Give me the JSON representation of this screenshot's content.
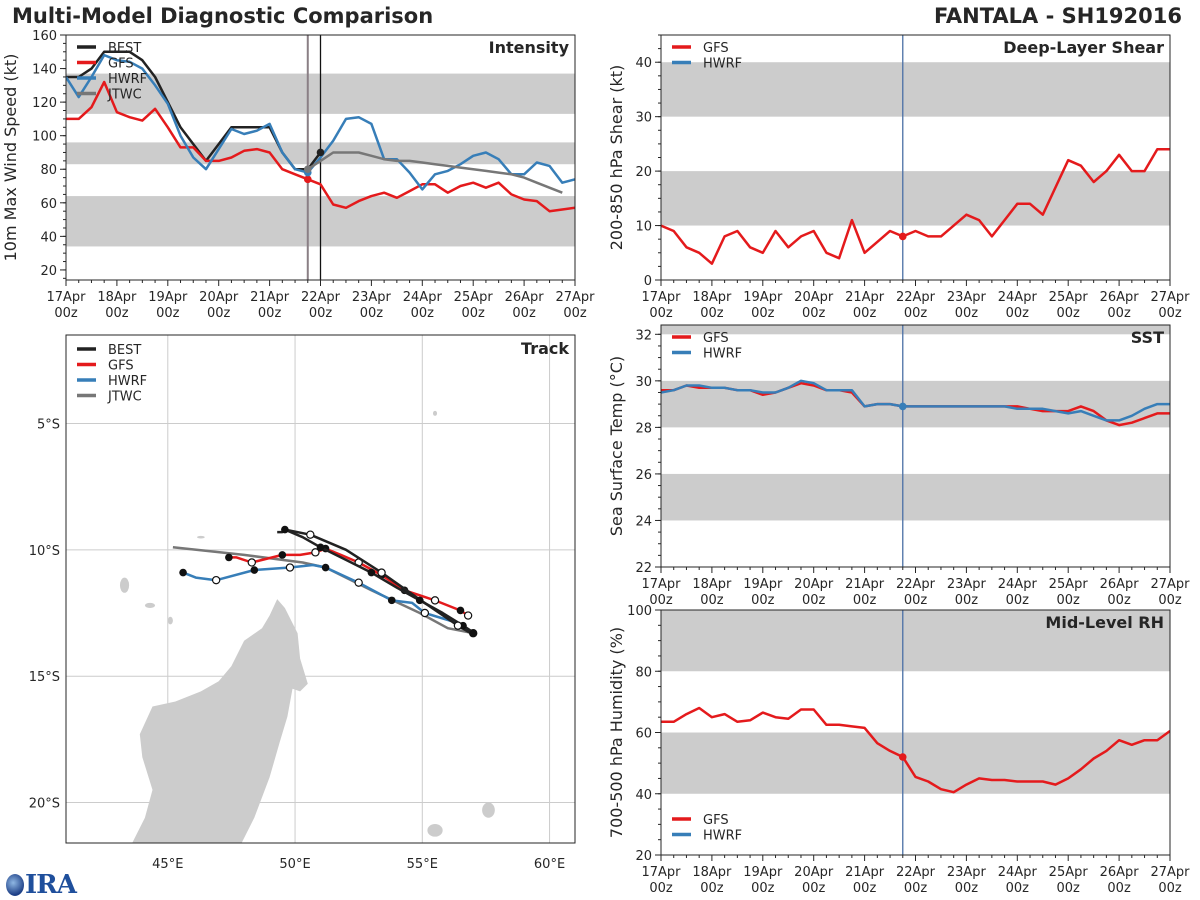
{
  "header": {
    "main_title": "Multi-Model Diagnostic Comparison",
    "storm_title": "FANTALA - SH192016",
    "logo_text": "IRA"
  },
  "colors": {
    "BEST": "#222222",
    "GFS": "#e41a1c",
    "HWRF": "#377eb8",
    "JTWC": "#777777",
    "band": "#cccccc",
    "land": "#cccccc",
    "grid": "#cccccc",
    "init_line_blue": "#4a6fa5",
    "init_line_grey": "#8a7f85"
  },
  "time_axis": {
    "start_hour": 0,
    "end_hour": 240,
    "step_hours": 6,
    "init_hour": 114,
    "tick_labels": [
      [
        "17Apr",
        "00z"
      ],
      [
        "18Apr",
        "00z"
      ],
      [
        "19Apr",
        "00z"
      ],
      [
        "20Apr",
        "00z"
      ],
      [
        "21Apr",
        "00z"
      ],
      [
        "22Apr",
        "00z"
      ],
      [
        "23Apr",
        "00z"
      ],
      [
        "24Apr",
        "00z"
      ],
      [
        "25Apr",
        "00z"
      ],
      [
        "26Apr",
        "00z"
      ],
      [
        "27Apr",
        "00z"
      ]
    ]
  },
  "chart_data": [
    {
      "id": "intensity",
      "type": "line",
      "title": "Intensity",
      "ylabel": "10m Max Wind Speed (kt)",
      "ylim": [
        14,
        160
      ],
      "yticks": [
        20,
        40,
        60,
        80,
        100,
        120,
        140,
        160
      ],
      "bands": [
        [
          34,
          64
        ],
        [
          83,
          96
        ],
        [
          113,
          137
        ]
      ],
      "vlines": [
        {
          "hour": 114,
          "color": "grey"
        },
        {
          "hour": 120,
          "color": "black"
        }
      ],
      "legend": [
        "BEST",
        "GFS",
        "HWRF",
        "JTWC"
      ],
      "legend_position": "top-left",
      "series": [
        {
          "name": "BEST",
          "start_hour": 0,
          "values": [
            135,
            135,
            140,
            150,
            150,
            150,
            145,
            135,
            120,
            105,
            95,
            85,
            95,
            105,
            105,
            105,
            105,
            90,
            80,
            80,
            90
          ]
        },
        {
          "name": "GFS",
          "start_hour": 0,
          "values": [
            110,
            110,
            117,
            132,
            114,
            111,
            109,
            116,
            105,
            93,
            93,
            85,
            85,
            87,
            91,
            92,
            90,
            80,
            77,
            74,
            71,
            59,
            57,
            61,
            64,
            66,
            63,
            67,
            71,
            71,
            66,
            70,
            72,
            69,
            72,
            65,
            62,
            61,
            55,
            56,
            57
          ]
        },
        {
          "name": "HWRF",
          "start_hour": 0,
          "values": [
            135,
            123,
            135,
            148,
            145,
            144,
            140,
            130,
            119,
            100,
            87,
            80,
            92,
            104,
            101,
            103,
            107,
            90,
            80,
            78,
            87,
            97,
            110,
            111,
            107,
            86,
            86,
            78,
            68,
            77,
            79,
            83,
            88,
            90,
            86,
            77,
            77,
            84,
            82,
            72,
            74
          ]
        },
        {
          "name": "JTWC",
          "start_hour": 114,
          "values": [
            80,
            85,
            90,
            90,
            90,
            88,
            86,
            85,
            85,
            84,
            83,
            82,
            81,
            80,
            79,
            78,
            77,
            75,
            72,
            69,
            66
          ]
        }
      ],
      "markers": [
        {
          "series": "GFS",
          "hour": 114,
          "value": 74
        },
        {
          "series": "HWRF",
          "hour": 114,
          "value": 78
        },
        {
          "series": "JTWC",
          "hour": 114,
          "value": 80
        },
        {
          "series": "BEST",
          "hour": 120,
          "value": 90
        }
      ]
    },
    {
      "id": "shear",
      "type": "line",
      "title": "Deep-Layer Shear",
      "ylabel": "200-850 hPa Shear (kt)",
      "ylim": [
        0,
        45
      ],
      "yticks": [
        0,
        10,
        20,
        30,
        40
      ],
      "bands": [
        [
          10,
          20
        ],
        [
          30,
          40
        ]
      ],
      "vlines": [
        {
          "hour": 114,
          "color": "blue"
        }
      ],
      "legend": [
        "GFS",
        "HWRF"
      ],
      "legend_position": "top-left",
      "series": [
        {
          "name": "GFS",
          "start_hour": 0,
          "values": [
            10,
            9,
            6,
            5,
            3,
            8,
            9,
            6,
            5,
            9,
            6,
            8,
            9,
            5,
            4,
            11,
            5,
            7,
            9,
            8,
            9,
            8,
            8,
            10,
            12,
            11,
            8,
            11,
            14,
            14,
            12,
            17,
            22,
            21,
            18,
            20,
            23,
            20,
            20,
            24,
            24
          ]
        },
        {
          "name": "HWRF",
          "start_hour": 0,
          "values": []
        }
      ],
      "markers": [
        {
          "series": "GFS",
          "hour": 114,
          "value": 8
        }
      ]
    },
    {
      "id": "sst",
      "type": "line",
      "title": "SST",
      "ylabel": "Sea Surface Temp (°C)",
      "ylim": [
        22,
        32.4
      ],
      "yticks": [
        22,
        24,
        26,
        28,
        30,
        32
      ],
      "bands": [
        [
          24,
          26
        ],
        [
          28,
          30
        ],
        [
          32,
          33
        ]
      ],
      "vlines": [
        {
          "hour": 114,
          "color": "blue"
        }
      ],
      "legend": [
        "GFS",
        "HWRF"
      ],
      "legend_position": "top-left",
      "series": [
        {
          "name": "GFS",
          "start_hour": 0,
          "values": [
            29.6,
            29.6,
            29.8,
            29.7,
            29.7,
            29.7,
            29.6,
            29.6,
            29.4,
            29.5,
            29.7,
            29.9,
            29.8,
            29.6,
            29.6,
            29.5,
            28.9,
            29.0,
            29.0,
            28.9,
            28.9,
            28.9,
            28.9,
            28.9,
            28.9,
            28.9,
            28.9,
            28.9,
            28.9,
            28.8,
            28.7,
            28.7,
            28.7,
            28.9,
            28.7,
            28.3,
            28.1,
            28.2,
            28.4,
            28.6,
            28.6
          ]
        },
        {
          "name": "HWRF",
          "start_hour": 0,
          "values": [
            29.5,
            29.6,
            29.8,
            29.8,
            29.7,
            29.7,
            29.6,
            29.6,
            29.5,
            29.5,
            29.7,
            30.0,
            29.9,
            29.6,
            29.6,
            29.6,
            28.9,
            29.0,
            29.0,
            28.9,
            28.9,
            28.9,
            28.9,
            28.9,
            28.9,
            28.9,
            28.9,
            28.9,
            28.8,
            28.8,
            28.8,
            28.7,
            28.6,
            28.7,
            28.5,
            28.3,
            28.3,
            28.5,
            28.8,
            29.0,
            29.0
          ]
        }
      ],
      "markers": [
        {
          "series": "HWRF",
          "hour": 114,
          "value": 28.9
        }
      ]
    },
    {
      "id": "rh",
      "type": "line",
      "title": "Mid-Level RH",
      "ylabel": "700-500 hPa Humidity (%)",
      "ylim": [
        20,
        100
      ],
      "yticks": [
        20,
        40,
        60,
        80,
        100
      ],
      "bands": [
        [
          40,
          60
        ],
        [
          80,
          100
        ]
      ],
      "vlines": [
        {
          "hour": 114,
          "color": "blue"
        }
      ],
      "legend": [
        "GFS",
        "HWRF"
      ],
      "legend_position": "bottom-left",
      "series": [
        {
          "name": "GFS",
          "start_hour": 0,
          "values": [
            63.5,
            63.5,
            66,
            68,
            65,
            66,
            63.5,
            64,
            66.5,
            65,
            64.5,
            67.5,
            67.5,
            62.5,
            62.5,
            62,
            61.5,
            56.5,
            54,
            52,
            45.5,
            44,
            41.5,
            40.5,
            43,
            45,
            44.5,
            44.5,
            44,
            44,
            44,
            43,
            45,
            48,
            51.5,
            54,
            57.5,
            56,
            57.5,
            57.5,
            60.5
          ]
        },
        {
          "name": "HWRF",
          "start_hour": 0,
          "values": []
        }
      ],
      "markers": [
        {
          "series": "GFS",
          "hour": 114,
          "value": 52
        }
      ]
    },
    {
      "id": "track",
      "type": "scatter",
      "title": "Track",
      "lon_range": [
        41,
        61
      ],
      "lat_range": [
        -21.6,
        -1.5
      ],
      "lon_ticks": [
        45,
        50,
        55,
        60
      ],
      "lon_tick_labels": [
        "45°E",
        "50°E",
        "55°E",
        "60°E"
      ],
      "lat_ticks": [
        -5,
        -10,
        -15,
        -20
      ],
      "lat_tick_labels": [
        "5°S",
        "10°S",
        "15°S",
        "20°S"
      ],
      "legend": [
        "BEST",
        "GFS",
        "HWRF",
        "JTWC"
      ],
      "legend_position": "top-left",
      "tracks": [
        {
          "name": "BEST",
          "points": [
            [
              57.0,
              -13.3
            ],
            [
              56.9,
              -13.2
            ],
            [
              56.6,
              -13.0
            ],
            [
              55.8,
              -12.5
            ],
            [
              54.9,
              -12.0
            ],
            [
              54.0,
              -11.5
            ],
            [
              53.0,
              -10.9
            ],
            [
              52.0,
              -10.4
            ],
            [
              51.0,
              -9.9
            ],
            [
              50.3,
              -9.5
            ],
            [
              49.6,
              -9.2
            ],
            [
              49.5,
              -9.3
            ],
            [
              49.3,
              -9.3
            ]
          ],
          "filled": [
            0,
            2,
            4,
            6,
            8,
            10
          ],
          "second_leg": [
            [
              49.6,
              -9.2
            ],
            [
              50.6,
              -9.4
            ],
            [
              52.0,
              -10.0
            ],
            [
              53.4,
              -10.9
            ],
            [
              54.8,
              -11.9
            ],
            [
              56.4,
              -13.0
            ],
            [
              56.9,
              -13.3
            ]
          ]
        },
        {
          "name": "GFS",
          "points": [
            [
              56.8,
              -12.6
            ],
            [
              56.5,
              -12.4
            ],
            [
              55.5,
              -12.0
            ],
            [
              54.9,
              -11.8
            ],
            [
              54.3,
              -11.6
            ],
            [
              53.4,
              -11.0
            ],
            [
              52.5,
              -10.5
            ],
            [
              51.8,
              -10.2
            ],
            [
              51.2,
              -9.95
            ],
            [
              50.8,
              -10.1
            ],
            [
              50.2,
              -10.2
            ],
            [
              49.5,
              -10.2
            ],
            [
              48.3,
              -10.5
            ],
            [
              47.7,
              -10.3
            ],
            [
              47.4,
              -10.3
            ]
          ],
          "filled": [
            1,
            4,
            5,
            8,
            11,
            14
          ],
          "hollow": [
            0,
            2,
            6,
            9,
            12
          ]
        },
        {
          "name": "HWRF",
          "points": [
            [
              57.0,
              -13.3
            ],
            [
              56.4,
              -12.9
            ],
            [
              55.1,
              -12.5
            ],
            [
              54.6,
              -12.1
            ],
            [
              53.8,
              -12.0
            ],
            [
              52.5,
              -11.3
            ],
            [
              51.2,
              -10.7
            ],
            [
              50.7,
              -10.6
            ],
            [
              49.8,
              -10.7
            ],
            [
              48.4,
              -10.8
            ],
            [
              46.9,
              -11.2
            ],
            [
              46.1,
              -11.1
            ],
            [
              45.6,
              -10.9
            ]
          ],
          "filled": [
            4,
            6,
            9,
            12
          ],
          "hollow": [
            0,
            2,
            5,
            8,
            10
          ]
        },
        {
          "name": "JTWC",
          "points": [
            [
              57.0,
              -13.3
            ],
            [
              56.0,
              -13.1
            ],
            [
              54.9,
              -12.5
            ],
            [
              53.0,
              -11.6
            ],
            [
              51.2,
              -10.7
            ],
            [
              50.3,
              -10.5
            ],
            [
              48.0,
              -10.2
            ],
            [
              45.2,
              -9.9
            ]
          ],
          "filled": [],
          "hollow": []
        }
      ]
    }
  ]
}
